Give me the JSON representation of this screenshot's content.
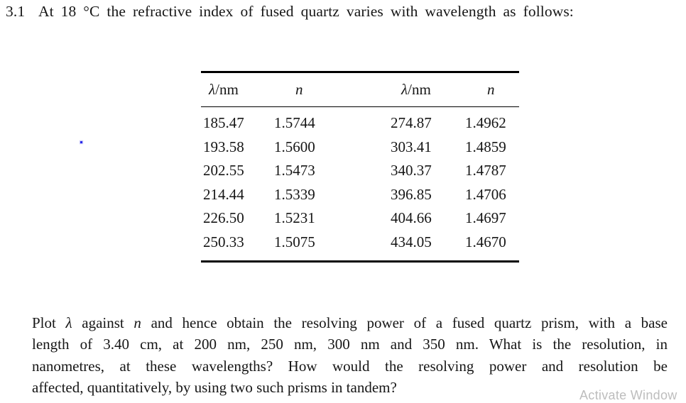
{
  "title": "3.1  At 18 °C the refractive index of fused quartz varies with wavelength as follows:",
  "table": {
    "header": [
      [
        {
          "t": "λ",
          "i": true
        },
        {
          "t": "/nm"
        }
      ],
      [
        {
          "t": "n",
          "i": true
        }
      ],
      [
        {
          "t": "λ",
          "i": true
        },
        {
          "t": "/nm"
        }
      ],
      [
        {
          "t": "n",
          "i": true
        }
      ]
    ],
    "rows": [
      [
        "185.47",
        "1.5744",
        "274.87",
        "1.4962"
      ],
      [
        "193.58",
        "1.5600",
        "303.41",
        "1.4859"
      ],
      [
        "202.55",
        "1.5473",
        "340.37",
        "1.4787"
      ],
      [
        "214.44",
        "1.5339",
        "396.85",
        "1.4706"
      ],
      [
        "226.50",
        "1.5231",
        "404.66",
        "1.4697"
      ],
      [
        "250.33",
        "1.5075",
        "434.05",
        "1.4670"
      ]
    ]
  },
  "paragraph": {
    "lines": [
      {
        "justify": true,
        "segs": [
          {
            "t": "Plot "
          },
          {
            "t": "λ",
            "i": true
          },
          {
            "t": " against "
          },
          {
            "t": "n",
            "i": true
          },
          {
            "t": " and hence obtain the resolving power of a fused quartz prism, with a base"
          }
        ]
      },
      {
        "justify": true,
        "segs": [
          {
            "t": "length of 3.40 cm, at 200 nm, 250 nm, 300 nm and 350 nm. What is the resolution, in"
          }
        ]
      },
      {
        "justify": true,
        "segs": [
          {
            "t": "nanometres, at these wavelengths? How would the resolving power and resolution be"
          }
        ]
      },
      {
        "justify": false,
        "segs": [
          {
            "t": "affected, quantitatively, by using two such prisms in tandem?"
          }
        ]
      }
    ]
  },
  "watermark": "Activate Window",
  "colors": {
    "text": "#161616",
    "watermark": "#bdbdbd",
    "stray_dot": "#2a2ae8"
  }
}
